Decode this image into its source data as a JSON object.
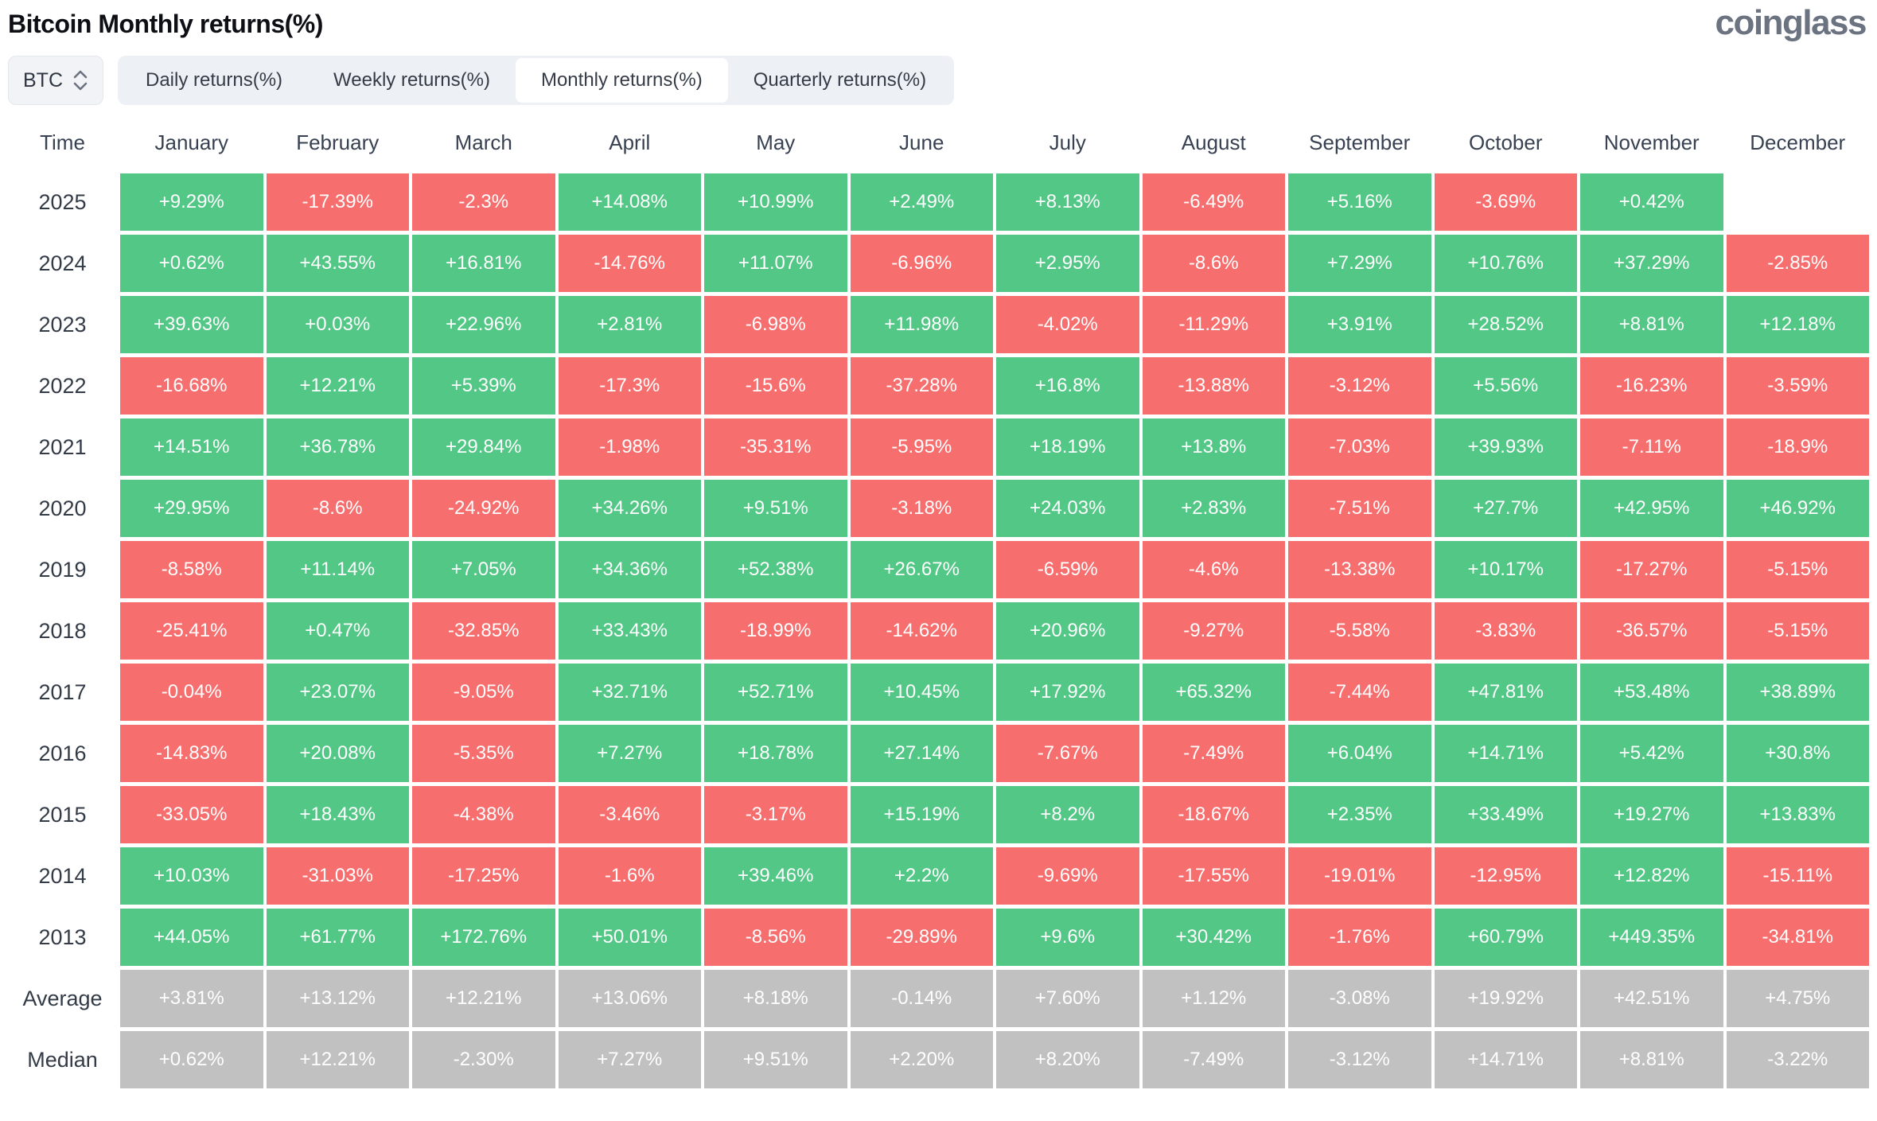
{
  "page": {
    "title": "Bitcoin Monthly returns(%)",
    "logo": "coinglass"
  },
  "controls": {
    "symbol_select": {
      "value": "BTC"
    },
    "tabs": [
      {
        "label": "Daily returns(%)",
        "active": false
      },
      {
        "label": "Weekly returns(%)",
        "active": false
      },
      {
        "label": "Monthly returns(%)",
        "active": true
      },
      {
        "label": "Quarterly returns(%)",
        "active": false
      }
    ]
  },
  "colors": {
    "positive": "#52c786",
    "negative": "#f76e6e",
    "neutral": "#c1c1c1",
    "header_text": "#374151",
    "logo": "#6b7280"
  },
  "table": {
    "time_label": "Time",
    "columns": [
      "January",
      "February",
      "March",
      "April",
      "May",
      "June",
      "July",
      "August",
      "September",
      "October",
      "November",
      "December"
    ],
    "rows": [
      {
        "label": "2025",
        "kind": "year",
        "values": [
          "+9.29%",
          "-17.39%",
          "-2.3%",
          "+14.08%",
          "+10.99%",
          "+2.49%",
          "+8.13%",
          "-6.49%",
          "+5.16%",
          "-3.69%",
          "+0.42%",
          ""
        ]
      },
      {
        "label": "2024",
        "kind": "year",
        "values": [
          "+0.62%",
          "+43.55%",
          "+16.81%",
          "-14.76%",
          "+11.07%",
          "-6.96%",
          "+2.95%",
          "-8.6%",
          "+7.29%",
          "+10.76%",
          "+37.29%",
          "-2.85%"
        ]
      },
      {
        "label": "2023",
        "kind": "year",
        "values": [
          "+39.63%",
          "+0.03%",
          "+22.96%",
          "+2.81%",
          "-6.98%",
          "+11.98%",
          "-4.02%",
          "-11.29%",
          "+3.91%",
          "+28.52%",
          "+8.81%",
          "+12.18%"
        ]
      },
      {
        "label": "2022",
        "kind": "year",
        "values": [
          "-16.68%",
          "+12.21%",
          "+5.39%",
          "-17.3%",
          "-15.6%",
          "-37.28%",
          "+16.8%",
          "-13.88%",
          "-3.12%",
          "+5.56%",
          "-16.23%",
          "-3.59%"
        ]
      },
      {
        "label": "2021",
        "kind": "year",
        "values": [
          "+14.51%",
          "+36.78%",
          "+29.84%",
          "-1.98%",
          "-35.31%",
          "-5.95%",
          "+18.19%",
          "+13.8%",
          "-7.03%",
          "+39.93%",
          "-7.11%",
          "-18.9%"
        ]
      },
      {
        "label": "2020",
        "kind": "year",
        "values": [
          "+29.95%",
          "-8.6%",
          "-24.92%",
          "+34.26%",
          "+9.51%",
          "-3.18%",
          "+24.03%",
          "+2.83%",
          "-7.51%",
          "+27.7%",
          "+42.95%",
          "+46.92%"
        ]
      },
      {
        "label": "2019",
        "kind": "year",
        "values": [
          "-8.58%",
          "+11.14%",
          "+7.05%",
          "+34.36%",
          "+52.38%",
          "+26.67%",
          "-6.59%",
          "-4.6%",
          "-13.38%",
          "+10.17%",
          "-17.27%",
          "-5.15%"
        ]
      },
      {
        "label": "2018",
        "kind": "year",
        "values": [
          "-25.41%",
          "+0.47%",
          "-32.85%",
          "+33.43%",
          "-18.99%",
          "-14.62%",
          "+20.96%",
          "-9.27%",
          "-5.58%",
          "-3.83%",
          "-36.57%",
          "-5.15%"
        ]
      },
      {
        "label": "2017",
        "kind": "year",
        "values": [
          "-0.04%",
          "+23.07%",
          "-9.05%",
          "+32.71%",
          "+52.71%",
          "+10.45%",
          "+17.92%",
          "+65.32%",
          "-7.44%",
          "+47.81%",
          "+53.48%",
          "+38.89%"
        ]
      },
      {
        "label": "2016",
        "kind": "year",
        "values": [
          "-14.83%",
          "+20.08%",
          "-5.35%",
          "+7.27%",
          "+18.78%",
          "+27.14%",
          "-7.67%",
          "-7.49%",
          "+6.04%",
          "+14.71%",
          "+5.42%",
          "+30.8%"
        ]
      },
      {
        "label": "2015",
        "kind": "year",
        "values": [
          "-33.05%",
          "+18.43%",
          "-4.38%",
          "-3.46%",
          "-3.17%",
          "+15.19%",
          "+8.2%",
          "-18.67%",
          "+2.35%",
          "+33.49%",
          "+19.27%",
          "+13.83%"
        ]
      },
      {
        "label": "2014",
        "kind": "year",
        "values": [
          "+10.03%",
          "-31.03%",
          "-17.25%",
          "-1.6%",
          "+39.46%",
          "+2.2%",
          "-9.69%",
          "-17.55%",
          "-19.01%",
          "-12.95%",
          "+12.82%",
          "-15.11%"
        ]
      },
      {
        "label": "2013",
        "kind": "year",
        "values": [
          "+44.05%",
          "+61.77%",
          "+172.76%",
          "+50.01%",
          "-8.56%",
          "-29.89%",
          "+9.6%",
          "+30.42%",
          "-1.76%",
          "+60.79%",
          "+449.35%",
          "-34.81%"
        ]
      },
      {
        "label": "Average",
        "kind": "summary",
        "values": [
          "+3.81%",
          "+13.12%",
          "+12.21%",
          "+13.06%",
          "+8.18%",
          "-0.14%",
          "+7.60%",
          "+1.12%",
          "-3.08%",
          "+19.92%",
          "+42.51%",
          "+4.75%"
        ]
      },
      {
        "label": "Median",
        "kind": "summary",
        "values": [
          "+0.62%",
          "+12.21%",
          "-2.30%",
          "+7.27%",
          "+9.51%",
          "+2.20%",
          "+8.20%",
          "-7.49%",
          "-3.12%",
          "+14.71%",
          "+8.81%",
          "-3.22%"
        ]
      }
    ]
  },
  "chart_data": {
    "type": "heatmap",
    "title": "Bitcoin Monthly returns(%)",
    "unit": "percent",
    "columns": [
      "January",
      "February",
      "March",
      "April",
      "May",
      "June",
      "July",
      "August",
      "September",
      "October",
      "November",
      "December"
    ],
    "rows": [
      "2025",
      "2024",
      "2023",
      "2022",
      "2021",
      "2020",
      "2019",
      "2018",
      "2017",
      "2016",
      "2015",
      "2014",
      "2013"
    ],
    "values": [
      [
        9.29,
        -17.39,
        -2.3,
        14.08,
        10.99,
        2.49,
        8.13,
        -6.49,
        5.16,
        -3.69,
        0.42,
        null
      ],
      [
        0.62,
        43.55,
        16.81,
        -14.76,
        11.07,
        -6.96,
        2.95,
        -8.6,
        7.29,
        10.76,
        37.29,
        -2.85
      ],
      [
        39.63,
        0.03,
        22.96,
        2.81,
        -6.98,
        11.98,
        -4.02,
        -11.29,
        3.91,
        28.52,
        8.81,
        12.18
      ],
      [
        -16.68,
        12.21,
        5.39,
        -17.3,
        -15.6,
        -37.28,
        16.8,
        -13.88,
        -3.12,
        5.56,
        -16.23,
        -3.59
      ],
      [
        14.51,
        36.78,
        29.84,
        -1.98,
        -35.31,
        -5.95,
        18.19,
        13.8,
        -7.03,
        39.93,
        -7.11,
        -18.9
      ],
      [
        29.95,
        -8.6,
        -24.92,
        34.26,
        9.51,
        -3.18,
        24.03,
        2.83,
        -7.51,
        27.7,
        42.95,
        46.92
      ],
      [
        -8.58,
        11.14,
        7.05,
        34.36,
        52.38,
        26.67,
        -6.59,
        -4.6,
        -13.38,
        10.17,
        -17.27,
        -5.15
      ],
      [
        -25.41,
        0.47,
        -32.85,
        33.43,
        -18.99,
        -14.62,
        20.96,
        -9.27,
        -5.58,
        -3.83,
        -36.57,
        -5.15
      ],
      [
        -0.04,
        23.07,
        -9.05,
        32.71,
        52.71,
        10.45,
        17.92,
        65.32,
        -7.44,
        47.81,
        53.48,
        38.89
      ],
      [
        -14.83,
        20.08,
        -5.35,
        7.27,
        18.78,
        27.14,
        -7.67,
        -7.49,
        6.04,
        14.71,
        5.42,
        30.8
      ],
      [
        -33.05,
        18.43,
        -4.38,
        -3.46,
        -3.17,
        15.19,
        8.2,
        -18.67,
        2.35,
        33.49,
        19.27,
        13.83
      ],
      [
        10.03,
        -31.03,
        -17.25,
        -1.6,
        39.46,
        2.2,
        -9.69,
        -17.55,
        -19.01,
        -12.95,
        12.82,
        -15.11
      ],
      [
        44.05,
        61.77,
        172.76,
        50.01,
        -8.56,
        -29.89,
        9.6,
        30.42,
        -1.76,
        60.79,
        449.35,
        -34.81
      ]
    ],
    "average": [
      3.81,
      13.12,
      12.21,
      13.06,
      8.18,
      -0.14,
      7.6,
      1.12,
      -3.08,
      19.92,
      42.51,
      4.75
    ],
    "median": [
      0.62,
      12.21,
      -2.3,
      7.27,
      9.51,
      2.2,
      8.2,
      -7.49,
      -3.12,
      14.71,
      8.81,
      -3.22
    ],
    "color_coding": "green = positive monthly return, red = negative monthly return, gray = Average/Median summary rows, empty = no data yet"
  }
}
